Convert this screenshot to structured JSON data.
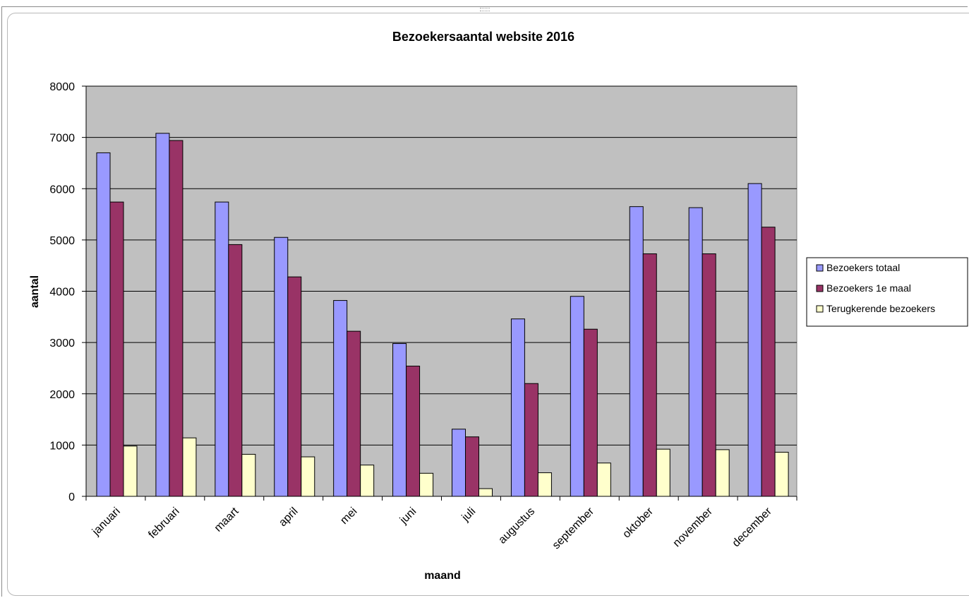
{
  "chart_data": {
    "type": "bar",
    "title": "Bezoekersaantal website 2016",
    "xlabel": "maand",
    "ylabel": "aantal",
    "ylim": [
      0,
      8000
    ],
    "yticks": [
      "0",
      "1000",
      "2000",
      "3000",
      "4000",
      "5000",
      "6000",
      "7000",
      "8000"
    ],
    "grid": true,
    "legend_position": "right",
    "plot_background": "#c0c0c0",
    "categories": [
      "januari",
      "februari",
      "maart",
      "april",
      "mei",
      "juni",
      "juli",
      "augustus",
      "september",
      "oktober",
      "november",
      "december"
    ],
    "series": [
      {
        "name": "Bezoekers totaal",
        "color": "#9999ff",
        "values": [
          6700,
          7080,
          5740,
          5050,
          3820,
          2980,
          1310,
          3460,
          3900,
          5650,
          5630,
          6100
        ]
      },
      {
        "name": "Bezoekers 1e maal",
        "color": "#993366",
        "values": [
          5740,
          6940,
          4910,
          4280,
          3220,
          2540,
          1160,
          2200,
          3260,
          4730,
          4730,
          5250
        ]
      },
      {
        "name": "Terugkerende bezoekers",
        "color": "#ffffcc",
        "values": [
          980,
          1140,
          820,
          770,
          610,
          450,
          150,
          460,
          650,
          920,
          910,
          860
        ]
      }
    ]
  }
}
